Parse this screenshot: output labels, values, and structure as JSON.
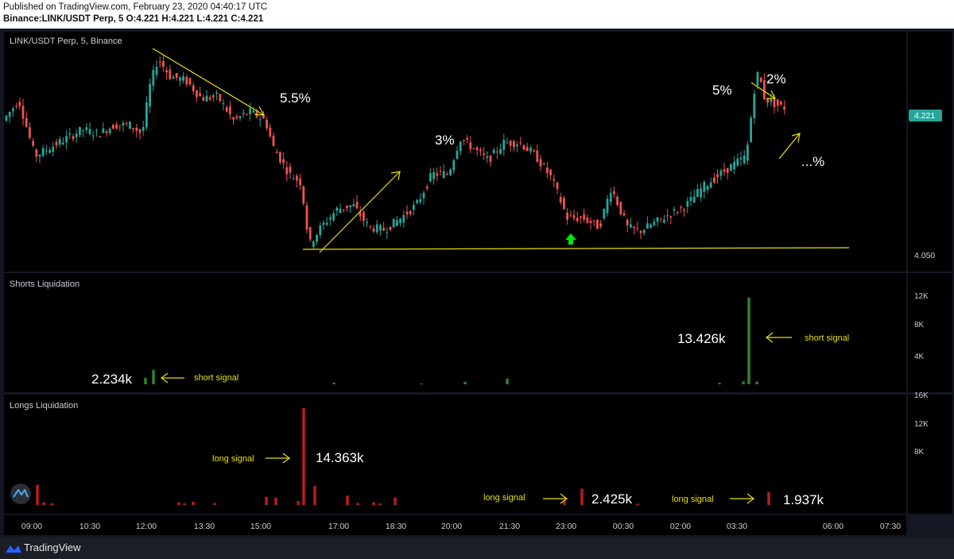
{
  "header": {
    "published": "Published on TradingView.com, February 23, 2020 04:40:17 UTC",
    "ohlc": "Binance:LINK/USDT Perp, 5  O:4.221 H:4.221 L:4.221 C:4.221"
  },
  "footer": {
    "brand": "TradingView"
  },
  "colors": {
    "up": "#26a69a",
    "down": "#ef5350",
    "annotation": "#e8e000",
    "short_bar": "#2e7d32",
    "long_bar": "#b71c1c",
    "price_badge": "#26a69a",
    "signal_arrow": "#00e600"
  },
  "chart_data": [
    {
      "type": "candlestick",
      "title": "LINK/USDT Perp, 5, Binance",
      "current_price_label": "4.221",
      "y_tick_labels": [
        "4.050"
      ],
      "ylim": [
        4.035,
        4.305
      ],
      "support_level": 4.057,
      "x_tick_labels": [
        "09:00",
        "10:30",
        "12:00",
        "13:30",
        "15:00",
        "17:00",
        "18:30",
        "20:00",
        "21:30",
        "23:00",
        "00:30",
        "02:00",
        "03:30",
        "06:00",
        "07:30"
      ],
      "annotations": [
        "5.5%",
        "3%",
        "5%",
        "2%",
        "...%"
      ],
      "anchors": [
        [
          0,
          4.205
        ],
        [
          20,
          4.228
        ],
        [
          40,
          4.165
        ],
        [
          60,
          4.175
        ],
        [
          80,
          4.185
        ],
        [
          100,
          4.195
        ],
        [
          120,
          4.19
        ],
        [
          140,
          4.2
        ],
        [
          160,
          4.2
        ],
        [
          175,
          4.19
        ],
        [
          185,
          4.245
        ],
        [
          195,
          4.275
        ],
        [
          210,
          4.255
        ],
        [
          230,
          4.25
        ],
        [
          250,
          4.23
        ],
        [
          270,
          4.232
        ],
        [
          290,
          4.205
        ],
        [
          310,
          4.215
        ],
        [
          330,
          4.205
        ],
        [
          340,
          4.175
        ],
        [
          360,
          4.145
        ],
        [
          375,
          4.135
        ],
        [
          385,
          4.065
        ],
        [
          400,
          4.085
        ],
        [
          420,
          4.105
        ],
        [
          440,
          4.11
        ],
        [
          460,
          4.085
        ],
        [
          480,
          4.082
        ],
        [
          500,
          4.095
        ],
        [
          520,
          4.11
        ],
        [
          540,
          4.145
        ],
        [
          560,
          4.145
        ],
        [
          575,
          4.185
        ],
        [
          590,
          4.175
        ],
        [
          610,
          4.16
        ],
        [
          630,
          4.18
        ],
        [
          650,
          4.18
        ],
        [
          670,
          4.165
        ],
        [
          690,
          4.14
        ],
        [
          710,
          4.095
        ],
        [
          730,
          4.095
        ],
        [
          750,
          4.085
        ],
        [
          765,
          4.13
        ],
        [
          785,
          4.085
        ],
        [
          800,
          4.08
        ],
        [
          830,
          4.095
        ],
        [
          860,
          4.11
        ],
        [
          880,
          4.13
        ],
        [
          910,
          4.15
        ],
        [
          935,
          4.165
        ],
        [
          945,
          4.24
        ],
        [
          950,
          4.26
        ],
        [
          958,
          4.23
        ],
        [
          968,
          4.225
        ],
        [
          980,
          4.22
        ]
      ]
    },
    {
      "type": "bar",
      "title": "Shorts Liquidation",
      "y_tick_labels": [
        "12K",
        "8K",
        "4K",
        "16K"
      ],
      "ylim": [
        0,
        16000
      ],
      "bars": [
        [
          183,
          1000
        ],
        [
          193,
          2234
        ],
        [
          420,
          260
        ],
        [
          530,
          120
        ],
        [
          585,
          380
        ],
        [
          638,
          900
        ],
        [
          905,
          220
        ],
        [
          935,
          450
        ],
        [
          942,
          13426
        ],
        [
          952,
          420
        ]
      ],
      "labels": [
        "2.234k",
        "13.426k"
      ],
      "signals": [
        "short signal",
        "short signal"
      ]
    },
    {
      "type": "bar",
      "title": "Longs Liquidation",
      "y_tick_labels": [
        "12K",
        "8K"
      ],
      "ylim": [
        0,
        16000
      ],
      "bars": [
        [
          47,
          3000
        ],
        [
          55,
          400
        ],
        [
          65,
          250
        ],
        [
          225,
          400
        ],
        [
          232,
          250
        ],
        [
          243,
          500
        ],
        [
          270,
          300
        ],
        [
          335,
          1200
        ],
        [
          347,
          1100
        ],
        [
          375,
          600
        ],
        [
          382,
          14363
        ],
        [
          396,
          2800
        ],
        [
          437,
          1400
        ],
        [
          450,
          300
        ],
        [
          470,
          400
        ],
        [
          478,
          250
        ],
        [
          497,
          1100
        ],
        [
          710,
          700
        ],
        [
          732,
          2425
        ],
        [
          802,
          200
        ],
        [
          967,
          1937
        ]
      ],
      "labels": [
        "14.363k",
        "2.425k",
        "1.937k"
      ],
      "signals": [
        "long signal",
        "long signal",
        "long signal"
      ]
    }
  ]
}
